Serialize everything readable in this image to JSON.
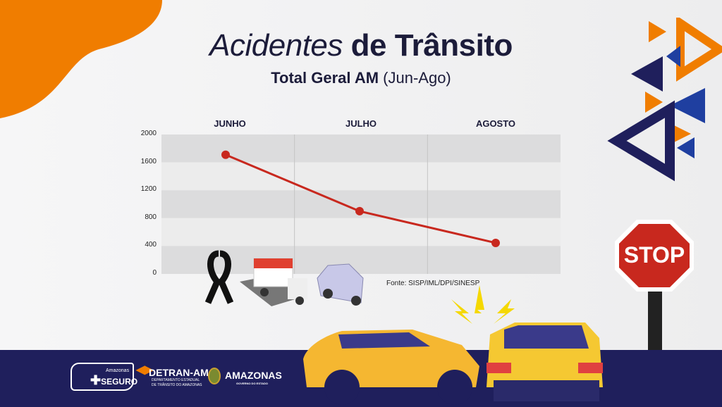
{
  "title": {
    "italic": "Acidentes",
    "bold": "de Trânsito"
  },
  "subtitle": {
    "bold": "Total Geral AM",
    "range": "(Jun-Ago)"
  },
  "source": "Fonte: SISP/IML/DPI/SINESP",
  "stop_sign": "STOP",
  "footer": {
    "logo1": {
      "small": "Amazonas",
      "big": "SEGURO"
    },
    "logo2": {
      "big": "DETRAN-AM",
      "line1": "DEPARTAMENTO ESTADUAL",
      "line2": "DE TRÂNSITO DO AMAZONAS"
    },
    "logo3": {
      "big": "AMAZONAS",
      "small": "GOVERNO DO ESTADO"
    }
  },
  "colors": {
    "line": "#c8281e",
    "accent_orange": "#f07d00",
    "navy": "#1f1f5c"
  },
  "chart_data": {
    "type": "line",
    "categories": [
      "JUNHO",
      "JULHO",
      "AGOSTO"
    ],
    "series": [
      {
        "values": [
          1710,
          900,
          445
        ]
      }
    ],
    "yticks": [
      "0",
      "400",
      "800",
      "1200",
      "1600",
      "2000"
    ],
    "ylim": [
      0,
      2000
    ],
    "grid": "horizontal bands",
    "legend": "none"
  }
}
